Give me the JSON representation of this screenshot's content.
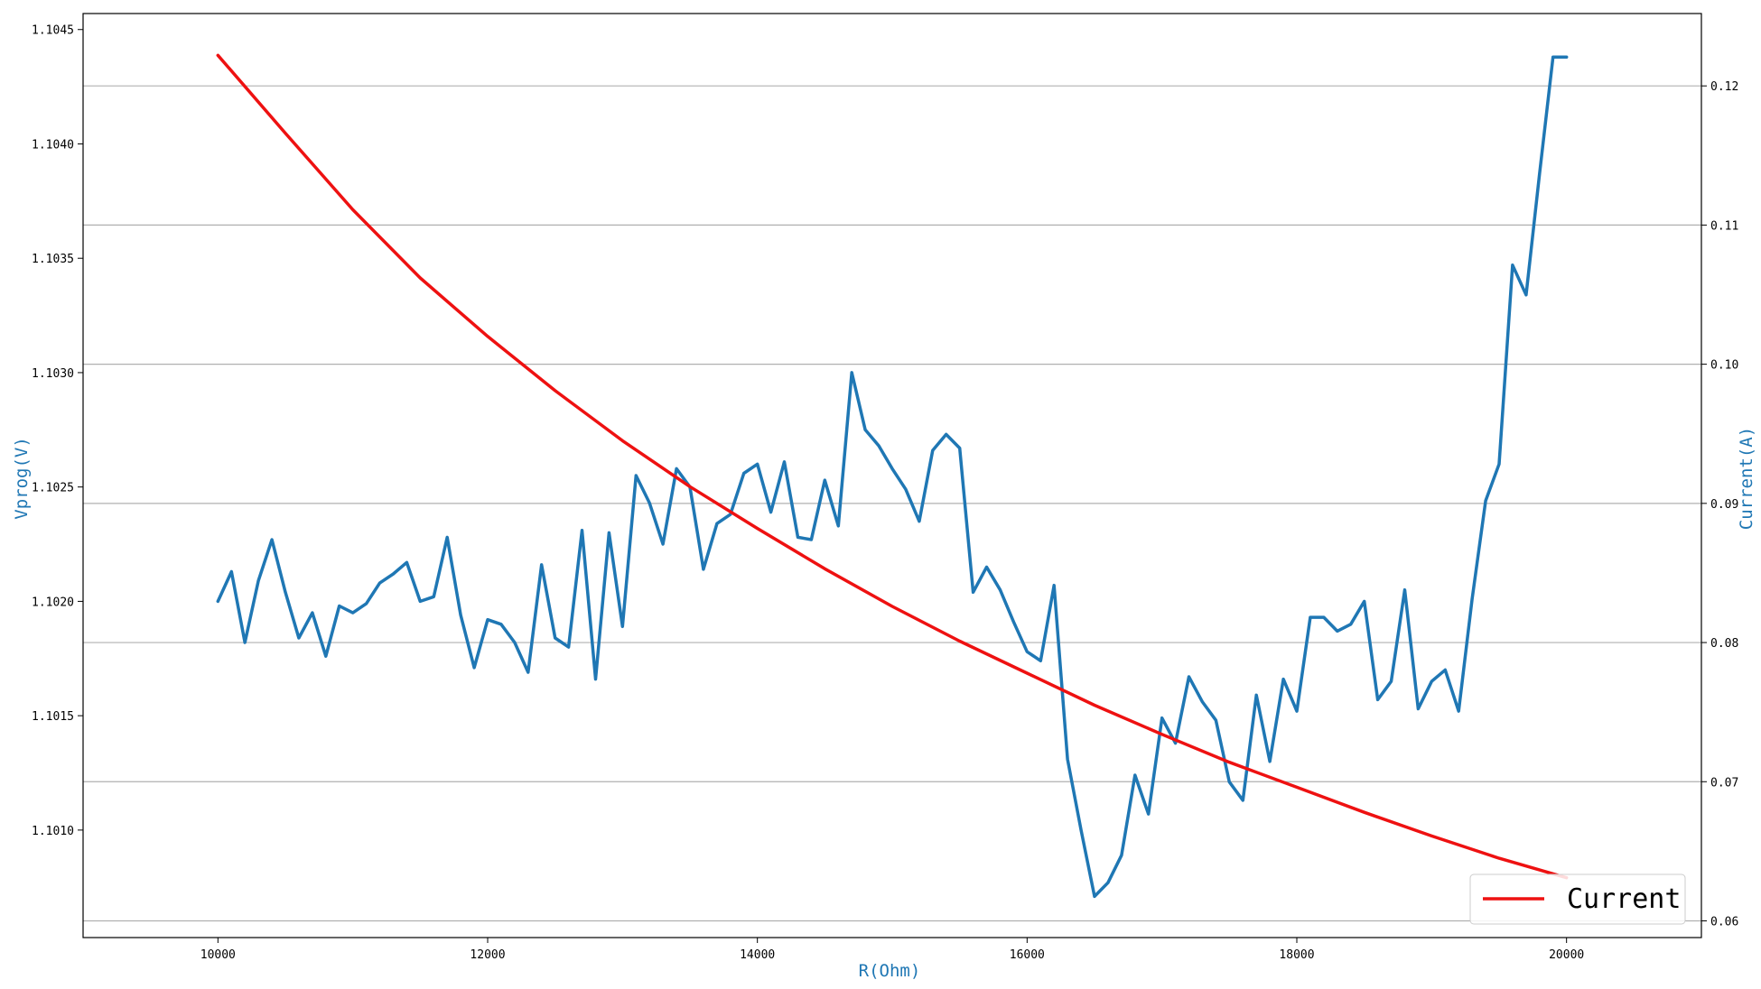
{
  "chart_data": {
    "type": "line",
    "title": "",
    "xlabel": "R(Ohm)",
    "ylabel_left": "Vprog(V)",
    "ylabel_right": "Current(A)",
    "xlim": [
      9000,
      21000
    ],
    "ylim_left": [
      1.10053,
      1.10457
    ],
    "ylim_right": [
      0.0588,
      0.1252
    ],
    "xticks": [
      10000,
      12000,
      14000,
      16000,
      18000,
      20000
    ],
    "xtick_labels": [
      "10000",
      "12000",
      "14000",
      "16000",
      "18000",
      "20000"
    ],
    "yticks_left": [
      1.101,
      1.1015,
      1.102,
      1.1025,
      1.103,
      1.1035,
      1.104,
      1.1045
    ],
    "ytick_labels_left": [
      "1.1010",
      "1.1015",
      "1.1020",
      "1.1025",
      "1.1030",
      "1.1035",
      "1.1040",
      "1.1045"
    ],
    "yticks_right": [
      0.06,
      0.07,
      0.08,
      0.09,
      0.1,
      0.11,
      0.12
    ],
    "ytick_labels_right": [
      "0.06",
      "0.07",
      "0.08",
      "0.09",
      "0.10",
      "0.11",
      "0.12"
    ],
    "grid": "horizontal-right-axis",
    "legend": {
      "placement": "bottom-right",
      "entries": [
        "Current"
      ]
    },
    "series": [
      {
        "name": "",
        "axis": "left",
        "color": "#1f77b4",
        "x": [
          10000,
          10100,
          10200,
          10300,
          10400,
          10500,
          10600,
          10700,
          10800,
          10900,
          11000,
          11100,
          11200,
          11300,
          11400,
          11500,
          11600,
          11700,
          11800,
          11900,
          12000,
          12100,
          12200,
          12300,
          12400,
          12500,
          12600,
          12700,
          12800,
          12900,
          13000,
          13100,
          13200,
          13300,
          13400,
          13500,
          13600,
          13700,
          13800,
          13900,
          14000,
          14100,
          14200,
          14300,
          14400,
          14500,
          14600,
          14700,
          14800,
          14900,
          15000,
          15100,
          15200,
          15300,
          15400,
          15500,
          15600,
          15700,
          15800,
          15900,
          16000,
          16100,
          16200,
          16300,
          16400,
          16500,
          16600,
          16700,
          16800,
          16900,
          17000,
          17100,
          17200,
          17300,
          17400,
          17500,
          17600,
          17700,
          17800,
          17900,
          18000,
          18100,
          18200,
          18300,
          18400,
          18500,
          18600,
          18700,
          18800,
          18900,
          19000,
          19100,
          19200,
          19300,
          19400,
          19500,
          19600,
          19700,
          19800,
          19900,
          20000
        ],
        "values": [
          1.102,
          1.10213,
          1.10182,
          1.10209,
          1.10227,
          1.10204,
          1.10184,
          1.10195,
          1.10176,
          1.10198,
          1.10195,
          1.10199,
          1.10208,
          1.10212,
          1.10217,
          1.102,
          1.10202,
          1.10228,
          1.10194,
          1.10171,
          1.10192,
          1.1019,
          1.10182,
          1.10169,
          1.10216,
          1.10184,
          1.1018,
          1.10231,
          1.10166,
          1.1023,
          1.10189,
          1.10255,
          1.10243,
          1.10225,
          1.10258,
          1.1025,
          1.10214,
          1.10234,
          1.10238,
          1.10256,
          1.1026,
          1.10239,
          1.10261,
          1.10228,
          1.10227,
          1.10253,
          1.10233,
          1.103,
          1.10275,
          1.10268,
          1.10258,
          1.10249,
          1.10235,
          1.10266,
          1.10273,
          1.10267,
          1.10204,
          1.10215,
          1.10205,
          1.10191,
          1.10178,
          1.10174,
          1.10207,
          1.10131,
          1.101,
          1.10071,
          1.10077,
          1.10089,
          1.10124,
          1.10107,
          1.10149,
          1.10138,
          1.10167,
          1.10156,
          1.10148,
          1.10121,
          1.10113,
          1.10159,
          1.1013,
          1.10166,
          1.10152,
          1.10193,
          1.10193,
          1.10187,
          1.1019,
          1.102,
          1.10157,
          1.10165,
          1.10205,
          1.10153,
          1.10165,
          1.1017,
          1.10152,
          1.10201,
          1.10244,
          1.1026,
          1.10347,
          1.10334,
          1.10387,
          1.10438,
          1.10438
        ]
      },
      {
        "name": "Current",
        "axis": "right",
        "color": "#ee1111",
        "x": [
          10000,
          10500,
          11000,
          11500,
          12000,
          12500,
          13000,
          13500,
          14000,
          14500,
          15000,
          15500,
          16000,
          16500,
          17000,
          17500,
          18000,
          18500,
          19000,
          19500,
          20000
        ],
        "values": [
          0.1222,
          0.1166,
          0.1111,
          0.1062,
          0.102,
          0.0981,
          0.0945,
          0.0912,
          0.0882,
          0.0853,
          0.0826,
          0.0801,
          0.0778,
          0.0755,
          0.0734,
          0.0714,
          0.0696,
          0.0678,
          0.0661,
          0.0645,
          0.0631
        ]
      }
    ]
  }
}
